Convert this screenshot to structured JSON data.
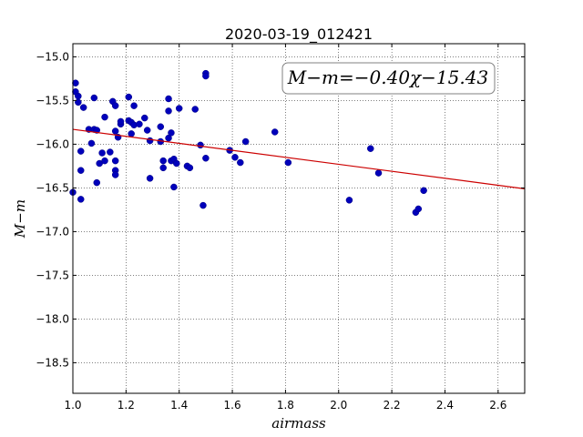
{
  "chart_data": {
    "type": "scatter",
    "title": "2020-03-19_012421",
    "xlabel": "airmass",
    "ylabel": "M−m",
    "xlim": [
      1.0,
      2.7
    ],
    "ylim": [
      -18.85,
      -14.85
    ],
    "y_inverted": true,
    "grid": true,
    "xticks": [
      "1.0",
      "1.2",
      "1.4",
      "1.6",
      "1.8",
      "2.0",
      "2.2",
      "2.4",
      "2.6"
    ],
    "yticks": [
      "−15.0",
      "−15.5",
      "−16.0",
      "−16.5",
      "−17.0",
      "−17.5",
      "−18.0",
      "−18.5"
    ],
    "annotation": "M−m=−0.40χ−15.43",
    "fit": {
      "slope": -0.4,
      "intercept": -15.43,
      "color": "#cc0000"
    },
    "point_color": "#0000bb",
    "points": [
      [
        1.0,
        -16.55
      ],
      [
        1.01,
        -15.3
      ],
      [
        1.01,
        -15.4
      ],
      [
        1.02,
        -15.45
      ],
      [
        1.02,
        -15.52
      ],
      [
        1.03,
        -16.63
      ],
      [
        1.03,
        -16.3
      ],
      [
        1.03,
        -16.08
      ],
      [
        1.04,
        -15.58
      ],
      [
        1.06,
        -15.83
      ],
      [
        1.07,
        -15.99
      ],
      [
        1.08,
        -15.83
      ],
      [
        1.08,
        -15.47
      ],
      [
        1.09,
        -15.84
      ],
      [
        1.09,
        -16.44
      ],
      [
        1.1,
        -16.22
      ],
      [
        1.11,
        -16.1
      ],
      [
        1.12,
        -15.69
      ],
      [
        1.12,
        -16.19
      ],
      [
        1.14,
        -16.09
      ],
      [
        1.15,
        -15.51
      ],
      [
        1.16,
        -15.85
      ],
      [
        1.16,
        -16.19
      ],
      [
        1.16,
        -16.3
      ],
      [
        1.16,
        -16.35
      ],
      [
        1.16,
        -15.56
      ],
      [
        1.17,
        -15.92
      ],
      [
        1.18,
        -15.77
      ],
      [
        1.18,
        -15.74
      ],
      [
        1.21,
        -15.46
      ],
      [
        1.21,
        -15.73
      ],
      [
        1.22,
        -15.88
      ],
      [
        1.22,
        -15.75
      ],
      [
        1.23,
        -15.78
      ],
      [
        1.23,
        -15.56
      ],
      [
        1.25,
        -15.77
      ],
      [
        1.27,
        -15.7
      ],
      [
        1.28,
        -15.84
      ],
      [
        1.29,
        -15.96
      ],
      [
        1.29,
        -16.39
      ],
      [
        1.33,
        -15.8
      ],
      [
        1.33,
        -15.97
      ],
      [
        1.34,
        -16.19
      ],
      [
        1.34,
        -16.27
      ],
      [
        1.36,
        -15.48
      ],
      [
        1.36,
        -15.62
      ],
      [
        1.36,
        -15.93
      ],
      [
        1.37,
        -15.87
      ],
      [
        1.37,
        -16.19
      ],
      [
        1.38,
        -16.17
      ],
      [
        1.38,
        -16.49
      ],
      [
        1.39,
        -16.22
      ],
      [
        1.4,
        -15.59
      ],
      [
        1.43,
        -16.25
      ],
      [
        1.44,
        -16.27
      ],
      [
        1.46,
        -15.6
      ],
      [
        1.48,
        -16.01
      ],
      [
        1.49,
        -16.7
      ],
      [
        1.5,
        -15.19
      ],
      [
        1.5,
        -15.22
      ],
      [
        1.5,
        -16.16
      ],
      [
        1.59,
        -16.07
      ],
      [
        1.61,
        -16.15
      ],
      [
        1.63,
        -16.21
      ],
      [
        1.65,
        -15.97
      ],
      [
        1.76,
        -15.86
      ],
      [
        1.81,
        -16.21
      ],
      [
        2.04,
        -16.64
      ],
      [
        2.12,
        -16.05
      ],
      [
        2.15,
        -16.33
      ],
      [
        2.29,
        -16.78
      ],
      [
        2.3,
        -16.74
      ],
      [
        2.32,
        -16.53
      ]
    ]
  }
}
